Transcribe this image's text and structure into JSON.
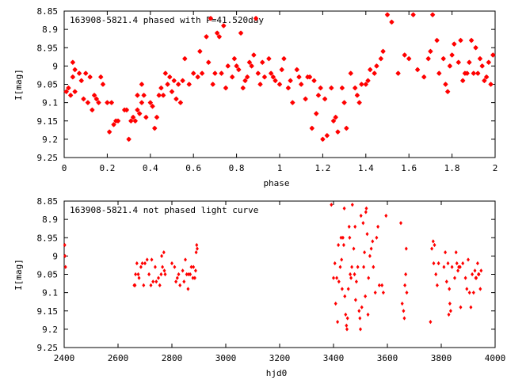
{
  "chart_data": [
    {
      "type": "scatter",
      "title": "163908-5821.4 phased with P=41.520day",
      "xlabel": "phase",
      "ylabel": "I[mag]",
      "xlim": [
        0,
        2
      ],
      "ylim": [
        9.25,
        8.85
      ],
      "y_inverted": true,
      "xticks": [
        "0",
        "0.2",
        "0.4",
        "0.6",
        "0.8",
        "1",
        "1.2",
        "1.4",
        "1.6",
        "1.8",
        "2"
      ],
      "yticks": [
        "8.85",
        "8.9",
        "8.95",
        "9",
        "9.05",
        "9.1",
        "9.15",
        "9.2",
        "9.25"
      ],
      "grid": false,
      "marker_color": "#ff0000",
      "points": [
        [
          0.01,
          9.07
        ],
        [
          0.02,
          9.06
        ],
        [
          0.03,
          9.08
        ],
        [
          0.04,
          9.03
        ],
        [
          0.05,
          9.07
        ],
        [
          0.04,
          8.99
        ],
        [
          0.05,
          9.01
        ],
        [
          0.07,
          9.02
        ],
        [
          0.08,
          9.04
        ],
        [
          0.09,
          9.09
        ],
        [
          0.1,
          9.02
        ],
        [
          0.11,
          9.1
        ],
        [
          0.12,
          9.03
        ],
        [
          0.13,
          9.12
        ],
        [
          0.14,
          9.08
        ],
        [
          0.15,
          9.09
        ],
        [
          0.16,
          9.1
        ],
        [
          0.17,
          9.03
        ],
        [
          0.18,
          9.05
        ],
        [
          0.2,
          9.1
        ],
        [
          0.21,
          9.18
        ],
        [
          0.22,
          9.1
        ],
        [
          0.23,
          9.16
        ],
        [
          0.24,
          9.15
        ],
        [
          0.25,
          9.15
        ],
        [
          0.28,
          9.12
        ],
        [
          0.29,
          9.12
        ],
        [
          0.3,
          9.2
        ],
        [
          0.31,
          9.15
        ],
        [
          0.32,
          9.14
        ],
        [
          0.33,
          9.15
        ],
        [
          0.34,
          9.08
        ],
        [
          0.34,
          9.12
        ],
        [
          0.35,
          9.13
        ],
        [
          0.36,
          9.05
        ],
        [
          0.36,
          9.1
        ],
        [
          0.37,
          9.08
        ],
        [
          0.38,
          9.14
        ],
        [
          0.4,
          9.1
        ],
        [
          0.41,
          9.11
        ],
        [
          0.42,
          9.17
        ],
        [
          0.43,
          9.14
        ],
        [
          0.44,
          9.08
        ],
        [
          0.45,
          9.06
        ],
        [
          0.46,
          9.08
        ],
        [
          0.47,
          9.02
        ],
        [
          0.48,
          9.05
        ],
        [
          0.49,
          9.03
        ],
        [
          0.5,
          9.07
        ],
        [
          0.51,
          9.04
        ],
        [
          0.52,
          9.09
        ],
        [
          0.53,
          9.05
        ],
        [
          0.54,
          9.1
        ],
        [
          0.55,
          9.04
        ],
        [
          0.56,
          8.98
        ],
        [
          0.58,
          9.05
        ],
        [
          0.6,
          9.02
        ],
        [
          0.62,
          9.03
        ],
        [
          0.63,
          8.96
        ],
        [
          0.64,
          9.02
        ],
        [
          0.66,
          8.92
        ],
        [
          0.67,
          8.99
        ],
        [
          0.68,
          8.87
        ],
        [
          0.69,
          9.05
        ],
        [
          0.7,
          9.02
        ],
        [
          0.71,
          8.91
        ],
        [
          0.72,
          8.92
        ],
        [
          0.73,
          9.02
        ],
        [
          0.74,
          8.89
        ],
        [
          0.75,
          9.06
        ],
        [
          0.76,
          9.0
        ],
        [
          0.78,
          9.03
        ],
        [
          0.79,
          8.98
        ],
        [
          0.8,
          9.0
        ],
        [
          0.81,
          9.01
        ],
        [
          0.82,
          8.91
        ],
        [
          0.83,
          9.06
        ],
        [
          0.84,
          9.04
        ],
        [
          0.85,
          9.03
        ],
        [
          0.86,
          8.99
        ],
        [
          0.87,
          9.0
        ],
        [
          0.88,
          8.97
        ],
        [
          0.89,
          8.87
        ],
        [
          0.9,
          9.02
        ],
        [
          0.91,
          9.05
        ],
        [
          0.92,
          8.99
        ],
        [
          0.93,
          9.03
        ],
        [
          0.95,
          8.98
        ],
        [
          0.96,
          9.02
        ],
        [
          0.97,
          9.03
        ],
        [
          0.98,
          9.04
        ],
        [
          1.0,
          9.05
        ],
        [
          1.01,
          9.01
        ],
        [
          1.02,
          8.98
        ],
        [
          1.04,
          9.06
        ],
        [
          1.05,
          9.04
        ],
        [
          1.06,
          9.1
        ],
        [
          1.08,
          9.01
        ],
        [
          1.09,
          9.03
        ],
        [
          1.1,
          9.05
        ],
        [
          1.12,
          9.09
        ],
        [
          1.13,
          9.03
        ],
        [
          1.14,
          9.03
        ],
        [
          1.15,
          9.17
        ],
        [
          1.16,
          9.04
        ],
        [
          1.17,
          9.13
        ],
        [
          1.18,
          9.08
        ],
        [
          1.19,
          9.06
        ],
        [
          1.2,
          9.2
        ],
        [
          1.21,
          9.09
        ],
        [
          1.22,
          9.19
        ],
        [
          1.24,
          9.06
        ],
        [
          1.25,
          9.15
        ],
        [
          1.26,
          9.14
        ],
        [
          1.27,
          9.18
        ],
        [
          1.29,
          9.06
        ],
        [
          1.3,
          9.1
        ],
        [
          1.31,
          9.17
        ],
        [
          1.33,
          9.02
        ],
        [
          1.35,
          9.06
        ],
        [
          1.36,
          9.08
        ],
        [
          1.37,
          9.1
        ],
        [
          1.38,
          9.05
        ],
        [
          1.4,
          9.05
        ],
        [
          1.41,
          9.04
        ],
        [
          1.42,
          9.01
        ],
        [
          1.44,
          9.02
        ],
        [
          1.45,
          9.0
        ],
        [
          1.47,
          8.98
        ],
        [
          1.48,
          8.96
        ],
        [
          1.5,
          8.86
        ],
        [
          1.52,
          8.88
        ],
        [
          1.55,
          9.02
        ],
        [
          1.58,
          8.97
        ],
        [
          1.6,
          8.98
        ],
        [
          1.62,
          8.86
        ],
        [
          1.64,
          9.01
        ],
        [
          1.67,
          9.03
        ],
        [
          1.69,
          8.98
        ],
        [
          1.7,
          8.96
        ],
        [
          1.71,
          8.86
        ],
        [
          1.73,
          8.93
        ],
        [
          1.74,
          9.02
        ],
        [
          1.76,
          8.98
        ],
        [
          1.77,
          9.05
        ],
        [
          1.78,
          9.07
        ],
        [
          1.79,
          9.0
        ],
        [
          1.8,
          8.97
        ],
        [
          1.81,
          8.94
        ],
        [
          1.83,
          8.99
        ],
        [
          1.84,
          8.93
        ],
        [
          1.85,
          9.04
        ],
        [
          1.86,
          9.02
        ],
        [
          1.87,
          9.02
        ],
        [
          1.88,
          8.99
        ],
        [
          1.89,
          8.93
        ],
        [
          1.9,
          9.02
        ],
        [
          1.91,
          8.95
        ],
        [
          1.92,
          9.02
        ],
        [
          1.93,
          8.98
        ],
        [
          1.94,
          9.0
        ],
        [
          1.95,
          9.04
        ],
        [
          1.96,
          9.03
        ],
        [
          1.97,
          8.99
        ],
        [
          1.98,
          9.05
        ],
        [
          1.99,
          8.97
        ]
      ]
    },
    {
      "type": "scatter",
      "title": "163908-5821.4 not phased light curve",
      "xlabel": "hjd0",
      "ylabel": "I[mag]",
      "xlim": [
        2400,
        4000
      ],
      "ylim": [
        9.25,
        8.85
      ],
      "y_inverted": true,
      "xticks": [
        "2400",
        "2600",
        "2800",
        "3000",
        "3200",
        "3400",
        "3600",
        "3800",
        "4000"
      ],
      "yticks": [
        "8.85",
        "8.9",
        "8.95",
        "9",
        "9.05",
        "9.1",
        "9.15",
        "9.2",
        "9.25"
      ],
      "grid": false,
      "marker_color": "#ff0000",
      "points": [
        [
          2402,
          8.97
        ],
        [
          2403,
          9.0
        ],
        [
          2405,
          9.03
        ],
        [
          2660,
          9.08
        ],
        [
          2663,
          9.08
        ],
        [
          2665,
          9.05
        ],
        [
          2670,
          9.02
        ],
        [
          2675,
          9.05
        ],
        [
          2678,
          9.06
        ],
        [
          2685,
          9.03
        ],
        [
          2690,
          9.02
        ],
        [
          2695,
          9.08
        ],
        [
          2700,
          9.02
        ],
        [
          2708,
          9.01
        ],
        [
          2715,
          9.05
        ],
        [
          2722,
          9.08
        ],
        [
          2725,
          9.01
        ],
        [
          2730,
          9.07
        ],
        [
          2738,
          9.03
        ],
        [
          2742,
          9.07
        ],
        [
          2750,
          9.06
        ],
        [
          2755,
          9.08
        ],
        [
          2760,
          9.05
        ],
        [
          2762,
          9.0
        ],
        [
          2765,
          9.03
        ],
        [
          2770,
          8.99
        ],
        [
          2772,
          9.04
        ],
        [
          2775,
          9.05
        ],
        [
          2800,
          9.02
        ],
        [
          2810,
          9.03
        ],
        [
          2815,
          9.07
        ],
        [
          2820,
          9.06
        ],
        [
          2825,
          9.05
        ],
        [
          2830,
          9.08
        ],
        [
          2840,
          9.04
        ],
        [
          2845,
          9.07
        ],
        [
          2850,
          9.01
        ],
        [
          2855,
          9.05
        ],
        [
          2860,
          9.09
        ],
        [
          2862,
          9.05
        ],
        [
          2868,
          9.05
        ],
        [
          2872,
          9.03
        ],
        [
          2878,
          9.06
        ],
        [
          2880,
          9.03
        ],
        [
          2885,
          9.06
        ],
        [
          2888,
          9.04
        ],
        [
          2890,
          8.99
        ],
        [
          2892,
          8.97
        ],
        [
          2894,
          8.98
        ],
        [
          3392,
          8.86
        ],
        [
          3400,
          9.06
        ],
        [
          3405,
          9.02
        ],
        [
          3408,
          9.13
        ],
        [
          3412,
          9.06
        ],
        [
          3415,
          9.18
        ],
        [
          3418,
          8.97
        ],
        [
          3420,
          9.07
        ],
        [
          3425,
          9.03
        ],
        [
          3428,
          8.95
        ],
        [
          3430,
          9.01
        ],
        [
          3432,
          9.09
        ],
        [
          3435,
          8.95
        ],
        [
          3438,
          8.97
        ],
        [
          3440,
          8.87
        ],
        [
          3442,
          9.11
        ],
        [
          3445,
          9.16
        ],
        [
          3448,
          9.19
        ],
        [
          3450,
          9.2
        ],
        [
          3452,
          9.17
        ],
        [
          3455,
          9.09
        ],
        [
          3458,
          8.92
        ],
        [
          3460,
          8.95
        ],
        [
          3462,
          9.05
        ],
        [
          3465,
          9.06
        ],
        [
          3468,
          9.03
        ],
        [
          3470,
          8.86
        ],
        [
          3475,
          8.98
        ],
        [
          3478,
          9.05
        ],
        [
          3480,
          8.92
        ],
        [
          3482,
          9.12
        ],
        [
          3485,
          9.07
        ],
        [
          3490,
          9.03
        ],
        [
          3495,
          9.15
        ],
        [
          3498,
          9.17
        ],
        [
          3500,
          9.2
        ],
        [
          3502,
          8.89
        ],
        [
          3505,
          9.14
        ],
        [
          3510,
          8.91
        ],
        [
          3512,
          9.03
        ],
        [
          3515,
          8.99
        ],
        [
          3518,
          9.11
        ],
        [
          3520,
          8.88
        ],
        [
          3522,
          8.87
        ],
        [
          3525,
          8.94
        ],
        [
          3528,
          9.16
        ],
        [
          3530,
          9.06
        ],
        [
          3535,
          9.0
        ],
        [
          3540,
          8.98
        ],
        [
          3545,
          8.96
        ],
        [
          3548,
          9.03
        ],
        [
          3555,
          9.1
        ],
        [
          3560,
          8.95
        ],
        [
          3565,
          8.92
        ],
        [
          3570,
          9.08
        ],
        [
          3580,
          9.08
        ],
        [
          3585,
          9.1
        ],
        [
          3595,
          8.89
        ],
        [
          3650,
          8.91
        ],
        [
          3655,
          9.13
        ],
        [
          3660,
          9.15
        ],
        [
          3663,
          9.17
        ],
        [
          3665,
          9.08
        ],
        [
          3668,
          9.05
        ],
        [
          3670,
          8.98
        ],
        [
          3672,
          9.1
        ],
        [
          3760,
          9.18
        ],
        [
          3765,
          8.98
        ],
        [
          3770,
          8.96
        ],
        [
          3772,
          9.02
        ],
        [
          3775,
          8.97
        ],
        [
          3780,
          9.05
        ],
        [
          3785,
          9.08
        ],
        [
          3790,
          9.02
        ],
        [
          3810,
          9.03
        ],
        [
          3815,
          8.99
        ],
        [
          3820,
          9.07
        ],
        [
          3825,
          9.02
        ],
        [
          3828,
          9.16
        ],
        [
          3830,
          9.09
        ],
        [
          3832,
          9.13
        ],
        [
          3835,
          9.15
        ],
        [
          3840,
          9.03
        ],
        [
          3850,
          9.06
        ],
        [
          3855,
          8.99
        ],
        [
          3858,
          9.02
        ],
        [
          3862,
          9.04
        ],
        [
          3865,
          9.03
        ],
        [
          3870,
          9.03
        ],
        [
          3872,
          9.14
        ],
        [
          3880,
          9.02
        ],
        [
          3890,
          9.06
        ],
        [
          3895,
          9.09
        ],
        [
          3900,
          9.01
        ],
        [
          3905,
          9.1
        ],
        [
          3910,
          9.14
        ],
        [
          3915,
          9.05
        ],
        [
          3920,
          9.1
        ],
        [
          3925,
          9.04
        ],
        [
          3928,
          9.06
        ],
        [
          3930,
          9.06
        ],
        [
          3935,
          9.02
        ],
        [
          3938,
          9.05
        ],
        [
          3940,
          9.05
        ],
        [
          3945,
          9.09
        ],
        [
          3948,
          9.04
        ]
      ]
    }
  ]
}
